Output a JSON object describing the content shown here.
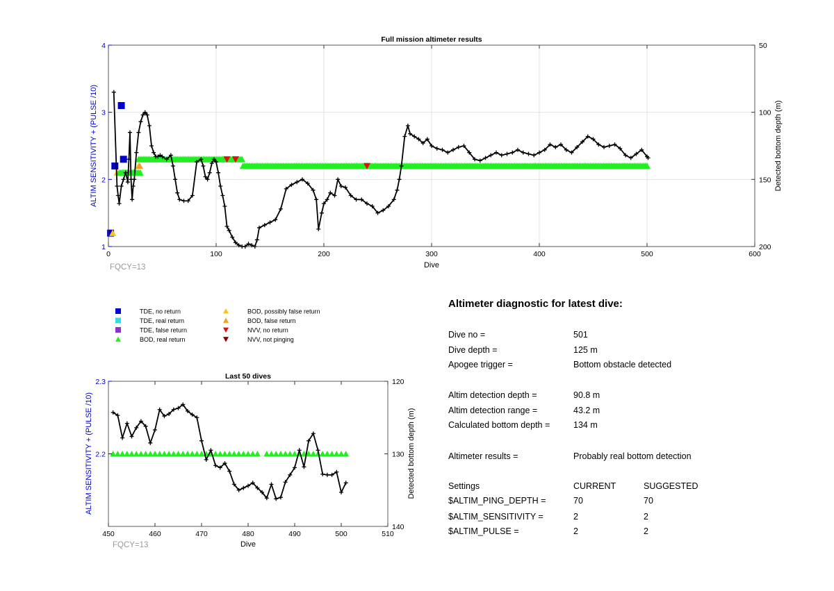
{
  "chart_data": [
    {
      "type": "scatter",
      "title": "Full mission altimeter results",
      "xlabel": "Dive",
      "ylabel": "ALTIM SENSITIVITY + (PULSE /10)",
      "ylabel_right": "Detected bottom depth (m)",
      "xlim": [
        0,
        600
      ],
      "ylim": [
        1,
        4
      ],
      "ylim_right": [
        50,
        200
      ],
      "right_axis_reversed": true,
      "xticks": [
        "0",
        "100",
        "200",
        "300",
        "400",
        "500",
        "600"
      ],
      "yticks": [
        "1",
        "2",
        "3",
        "4"
      ],
      "yticks_right": [
        "50",
        "100",
        "150",
        "200"
      ],
      "grid": true,
      "note": "FQCY=13",
      "series": [
        {
          "name": "TDE, no return",
          "color": "#0000cc",
          "marker": "square",
          "x": [
            2,
            6,
            12,
            14
          ],
          "y": [
            1.2,
            2.2,
            3.1,
            2.3
          ]
        },
        {
          "name": "BOD, possibly false return",
          "color": "#f5c518",
          "marker": "triangle-up",
          "x": [
            4,
            8,
            24,
            28
          ],
          "y": [
            1.2,
            2.1,
            2.1,
            2.2
          ]
        },
        {
          "name": "BOD, false return",
          "color": "#f0a020",
          "marker": "triangle-up",
          "x": [
            29
          ],
          "y": [
            2.2
          ]
        },
        {
          "name": "BOD, real return",
          "color": "#22ee22",
          "marker": "triangle-up",
          "x_from": 10,
          "x_to": 30,
          "y": 2.1,
          "segments": [
            {
              "x_from": 28,
              "x_to": 125,
              "y": 2.3
            },
            {
              "x_from": 125,
              "x_to": 501,
              "y": 2.2
            }
          ]
        },
        {
          "name": "NVV, no return",
          "color": "#dd1111",
          "marker": "triangle-down",
          "x": [
            110,
            118,
            240
          ],
          "y": [
            2.3,
            2.3,
            2.2
          ]
        },
        {
          "name": "Detected bottom depth",
          "axis": "right",
          "color": "#000000",
          "marker": "plus-line",
          "x": [
            5,
            8,
            9,
            10,
            12,
            14,
            16,
            18,
            19,
            20,
            21,
            22,
            23,
            24,
            26,
            28,
            30,
            32,
            34,
            36,
            38,
            40,
            42,
            44,
            46,
            48,
            50,
            54,
            58,
            60,
            62,
            64,
            66,
            70,
            74,
            78,
            82,
            86,
            88,
            90,
            92,
            94,
            96,
            98,
            100,
            102,
            104,
            106,
            108,
            110,
            112,
            115,
            118,
            121,
            124,
            127,
            130,
            133,
            136,
            138,
            140,
            145,
            150,
            155,
            160,
            165,
            170,
            175,
            180,
            185,
            190,
            193,
            195,
            198,
            200,
            203,
            206,
            210,
            213,
            216,
            220,
            225,
            230,
            235,
            240,
            245,
            250,
            255,
            260,
            265,
            268,
            270,
            272,
            275,
            278,
            280,
            284,
            288,
            292,
            296,
            300,
            305,
            310,
            315,
            320,
            325,
            330,
            335,
            340,
            345,
            350,
            355,
            360,
            365,
            370,
            375,
            380,
            385,
            390,
            395,
            400,
            405,
            410,
            415,
            420,
            425,
            430,
            435,
            440,
            445,
            450,
            455,
            460,
            465,
            470,
            475,
            480,
            485,
            490,
            495,
            500,
            501
          ],
          "y": [
            85,
            155,
            162,
            168,
            155,
            150,
            145,
            152,
            135,
            115,
            150,
            165,
            155,
            150,
            130,
            115,
            107,
            102,
            100,
            102,
            110,
            125,
            130,
            133,
            133,
            132,
            133,
            135,
            132,
            140,
            150,
            160,
            165,
            166,
            166,
            162,
            137,
            135,
            140,
            148,
            150,
            145,
            138,
            135,
            137,
            145,
            155,
            162,
            170,
            185,
            188,
            193,
            197,
            199,
            200,
            200,
            198,
            199,
            200,
            195,
            186,
            184,
            182,
            180,
            172,
            157,
            154,
            152,
            150,
            153,
            158,
            165,
            187,
            175,
            168,
            165,
            160,
            162,
            150,
            155,
            156,
            162,
            165,
            165,
            168,
            170,
            175,
            173,
            170,
            165,
            158,
            150,
            140,
            118,
            110,
            116,
            118,
            120,
            123,
            120,
            125,
            127,
            128,
            130,
            128,
            126,
            125,
            130,
            135,
            136,
            134,
            132,
            130,
            132,
            131,
            130,
            128,
            130,
            131,
            132,
            130,
            128,
            124,
            126,
            124,
            128,
            130,
            126,
            122,
            118,
            120,
            124,
            126,
            125,
            124,
            127,
            132,
            134,
            131,
            128,
            133,
            134
          ]
        }
      ]
    },
    {
      "type": "scatter",
      "title": "Last 50 dives",
      "xlabel": "Dive",
      "ylabel": "ALTIM SENSITIVITY + (PULSE /10)",
      "ylabel_right": "Detected bottom depth (m)",
      "xlim": [
        450,
        510
      ],
      "ylim": [
        2.1,
        2.3
      ],
      "ylim_right": [
        120,
        140
      ],
      "right_axis_reversed": true,
      "xticks": [
        "450",
        "460",
        "470",
        "480",
        "490",
        "500",
        "510"
      ],
      "yticks": [
        "2.2",
        "2.3"
      ],
      "yticks_right": [
        "120",
        "130",
        "140"
      ],
      "grid": false,
      "note": "FQCY=13",
      "series": [
        {
          "name": "BOD, real return",
          "color": "#22ee22",
          "marker": "triangle-up",
          "x": [
            451,
            452,
            453,
            454,
            455,
            456,
            457,
            458,
            459,
            460,
            461,
            462,
            463,
            464,
            465,
            466,
            467,
            468,
            469,
            470,
            471,
            472,
            473,
            474,
            475,
            476,
            477,
            478,
            479,
            480,
            481,
            482,
            484,
            485,
            486,
            487,
            488,
            489,
            490,
            491,
            492,
            493,
            494,
            495,
            496,
            497,
            498,
            499,
            500,
            501
          ],
          "y": [
            2.2,
            2.2,
            2.2,
            2.2,
            2.2,
            2.2,
            2.2,
            2.2,
            2.2,
            2.2,
            2.2,
            2.2,
            2.2,
            2.2,
            2.2,
            2.2,
            2.2,
            2.2,
            2.2,
            2.2,
            2.2,
            2.2,
            2.2,
            2.2,
            2.2,
            2.2,
            2.2,
            2.2,
            2.2,
            2.2,
            2.2,
            2.2,
            2.2,
            2.2,
            2.2,
            2.2,
            2.2,
            2.2,
            2.2,
            2.2,
            2.2,
            2.2,
            2.2,
            2.2,
            2.2,
            2.2,
            2.2,
            2.2,
            2.2,
            2.2
          ]
        },
        {
          "name": "Detected bottom depth",
          "axis": "right",
          "color": "#000000",
          "marker": "plus-line",
          "x": [
            451,
            452,
            453,
            454,
            455,
            456,
            457,
            458,
            459,
            460,
            461,
            462,
            463,
            464,
            465,
            466,
            467,
            468,
            469,
            470,
            471,
            472,
            473,
            474,
            475,
            476,
            477,
            478,
            479,
            480,
            481,
            482,
            483,
            484,
            485,
            486,
            487,
            488,
            489,
            490,
            491,
            492,
            493,
            494,
            495,
            496,
            497,
            498,
            499,
            500,
            501
          ],
          "y": [
            124.3,
            124.7,
            127.8,
            125.8,
            127.6,
            126.4,
            125.5,
            126.2,
            128.5,
            126.7,
            123.9,
            124.8,
            124.5,
            123.9,
            123.7,
            123.2,
            124.1,
            124.6,
            125.0,
            128.2,
            130.8,
            129.5,
            131.6,
            131.9,
            131.3,
            132.4,
            134.2,
            135.0,
            134.7,
            134.4,
            134.0,
            134.7,
            135.3,
            136.1,
            134.2,
            136.2,
            136.0,
            133.9,
            132.9,
            131.9,
            129.5,
            131.8,
            128.2,
            127.2,
            129.5,
            132.8,
            132.9,
            132.9,
            132.5,
            135.3,
            134.0
          ]
        }
      ]
    }
  ],
  "legend": [
    {
      "label": "TDE, no return",
      "color": "#0000cc",
      "marker": "square"
    },
    {
      "label": "TDE, real return",
      "color": "#33dddd",
      "marker": "square"
    },
    {
      "label": "TDE, false return",
      "color": "#8833cc",
      "marker": "square"
    },
    {
      "label": "BOD, real return",
      "color": "#22ee22",
      "marker": "triangle-up"
    },
    {
      "label": "BOD, possibly false return",
      "color": "#f5c518",
      "marker": "triangle-up"
    },
    {
      "label": "BOD, false return",
      "color": "#f0a020",
      "marker": "triangle-up"
    },
    {
      "label": "NVV, no return",
      "color": "#dd1111",
      "marker": "triangle-down"
    },
    {
      "label": "NVV, not pinging",
      "color": "#8b0000",
      "marker": "triangle-down"
    }
  ],
  "diagnostic": {
    "title": "Altimeter diagnostic for latest dive:",
    "rows": [
      {
        "label": "Dive no =",
        "value": "501"
      },
      {
        "label": "Dive depth =",
        "value": "125 m"
      },
      {
        "label": "Apogee trigger =",
        "value": "Bottom obstacle detected"
      },
      {
        "label": "Altim detection depth =",
        "value": "90.8 m"
      },
      {
        "label": "Altim detection range =",
        "value": "43.2 m"
      },
      {
        "label": "Calculated bottom depth =",
        "value": "134 m"
      },
      {
        "label": "Altimeter results =",
        "value": "Probably real bottom detection"
      }
    ],
    "settings_header": {
      "label": "Settings",
      "current": "CURRENT",
      "suggested": "SUGGESTED"
    },
    "settings": [
      {
        "label": "$ALTIM_PING_DEPTH =",
        "current": "70",
        "suggested": "70"
      },
      {
        "label": "$ALTIM_SENSITIVITY =",
        "current": "2",
        "suggested": "2"
      },
      {
        "label": "$ALTIM_PULSE =",
        "current": "2",
        "suggested": "2"
      }
    ]
  },
  "colors": {
    "left_axis": "#0000cc",
    "fqcy": "#999999",
    "grid": "#e3e3e3"
  }
}
